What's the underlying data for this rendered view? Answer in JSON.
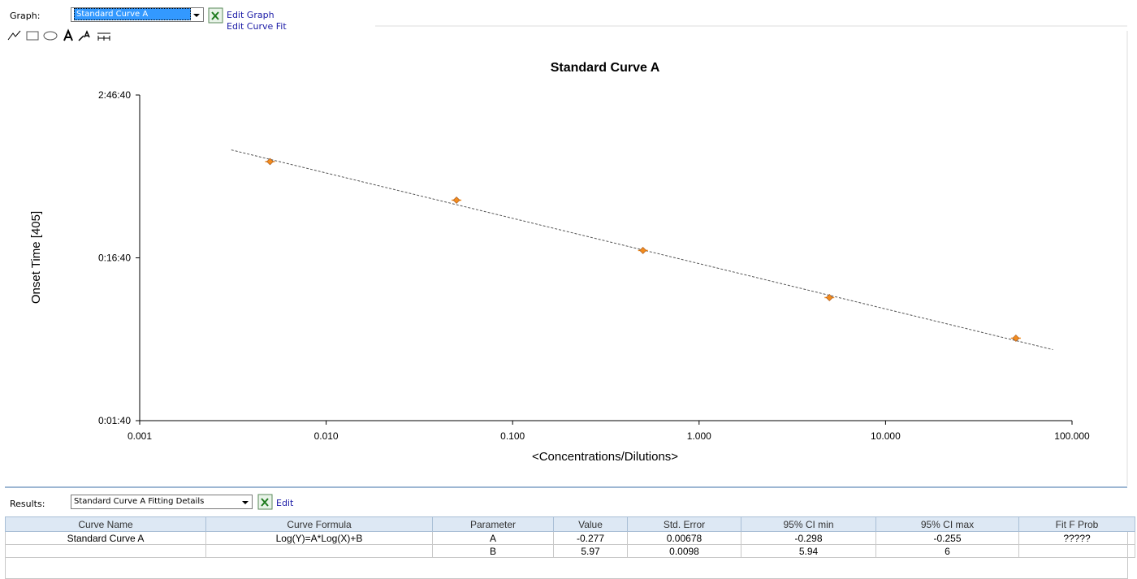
{
  "toolbar": {
    "graph_label": "Graph:",
    "graph_select": "Standard Curve A",
    "edit_graph": "Edit Graph",
    "edit_curve_fit": "Edit Curve Fit"
  },
  "chart_data": {
    "type": "scatter",
    "title": "Standard Curve A",
    "x_label": "<Concentrations/Dilutions>",
    "y_label": "Onset Time [405]",
    "x": [
      0.005,
      0.05,
      0.5,
      5,
      50
    ],
    "values": [
      3900,
      2260,
      1110,
      570,
      321
    ],
    "color": "#f28c1e",
    "fit_line": {
      "x": [
        0.0031,
        79
      ],
      "values": [
        4600,
        273
      ],
      "color": "#555555",
      "style": "dashed"
    },
    "xscale": "log",
    "yscale": "log",
    "xlim": [
      0.001,
      100
    ],
    "ylim": [
      100,
      10000
    ],
    "xticks": [
      {
        "value": 0.001,
        "label": "0.001"
      },
      {
        "value": 0.01,
        "label": "0.010"
      },
      {
        "value": 0.1,
        "label": "0.100"
      },
      {
        "value": 1,
        "label": "1.000"
      },
      {
        "value": 10,
        "label": "10.000"
      },
      {
        "value": 100,
        "label": "100.000"
      }
    ],
    "yticks": [
      {
        "value": 100,
        "label": "0:01:40"
      },
      {
        "value": 1000,
        "label": "0:16:40"
      },
      {
        "value": 10000,
        "label": "2:46:40"
      }
    ],
    "grid": false
  },
  "results": {
    "label": "Results:",
    "select": "Standard Curve A Fitting Details",
    "edit": "Edit",
    "table": {
      "columns": [
        "Curve Name",
        "Curve Formula",
        "Parameter",
        "Value",
        "Std. Error",
        "95% CI min",
        "95% CI max",
        "Fit F Prob"
      ],
      "rows": [
        [
          "Standard Curve A",
          "Log(Y)=A*Log(X)+B",
          "A",
          "-0.277",
          "0.00678",
          "-0.298",
          "-0.255",
          "?????"
        ],
        [
          null,
          null,
          "B",
          "5.97",
          "0.0098",
          "5.94",
          "6",
          null
        ]
      ]
    }
  }
}
